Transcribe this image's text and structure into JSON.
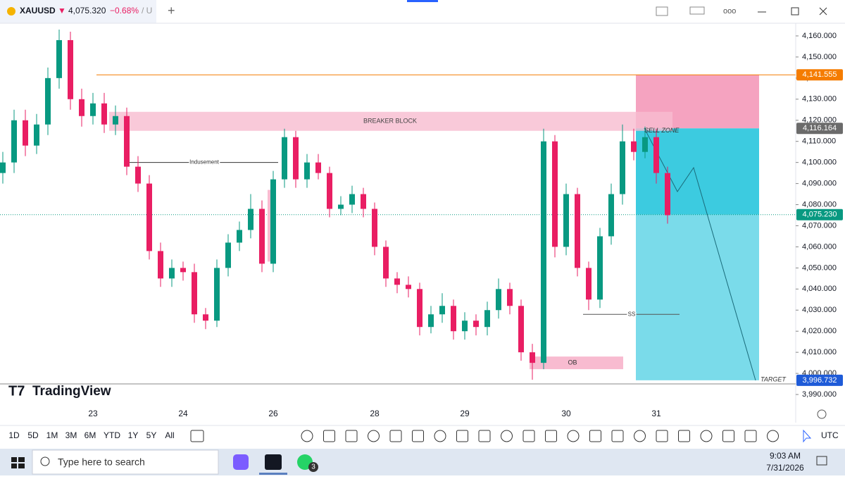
{
  "header": {
    "symbol": "XAUUSD",
    "arrow": "▼",
    "price": "4,075.320",
    "change": "−0.68%",
    "suffix": "/ U"
  },
  "chart_data": {
    "type": "candlestick",
    "categories": [
      null,
      null,
      null,
      null,
      null,
      null,
      null,
      null,
      "23",
      null,
      null,
      null,
      null,
      null,
      null,
      null,
      "24",
      null,
      null,
      null,
      null,
      null,
      null,
      null,
      "26",
      null,
      null,
      null,
      null,
      null,
      null,
      null,
      null,
      "28",
      null,
      null,
      null,
      null,
      null,
      null,
      null,
      "29",
      null,
      null,
      null,
      null,
      null,
      null,
      null,
      null,
      "30",
      null,
      null,
      null,
      null,
      null,
      null,
      null,
      "31",
      null
    ],
    "open": [
      4095,
      4100,
      4120,
      4108,
      4118,
      4140,
      4158,
      4130,
      4122,
      4128,
      4118,
      4122,
      4098,
      4090,
      4058,
      4045,
      4050,
      4048,
      4028,
      4025,
      4050,
      4062,
      4068,
      4078,
      4052,
      4092,
      4112,
      4092,
      4100,
      4095,
      4078,
      4080,
      4085,
      4078,
      4060,
      4045,
      4042,
      4040,
      4022,
      4028,
      4032,
      4020,
      4025,
      4022,
      4030,
      4040,
      4032,
      4010,
      4005,
      4110,
      4060,
      4085,
      4050,
      4035,
      4065,
      4085,
      4110,
      4105,
      4112,
      4095
    ],
    "high": [
      4105,
      4125,
      4125,
      4123,
      4145,
      4163,
      4162,
      4135,
      4133,
      4133,
      4127,
      4126,
      4103,
      4094,
      4062,
      4054,
      4053,
      4052,
      4031,
      4054,
      4066,
      4072,
      4085,
      4082,
      4096,
      4116,
      4115,
      4104,
      4104,
      4098,
      4084,
      4089,
      4088,
      4081,
      4063,
      4048,
      4046,
      4043,
      4032,
      4038,
      4035,
      4029,
      4028,
      4034,
      4045,
      4043,
      4035,
      4014,
      4116,
      4113,
      4090,
      4088,
      4053,
      4069,
      4090,
      4118,
      4116,
      4117,
      4116,
      4098
    ],
    "low": [
      4090,
      4095,
      4103,
      4104,
      4113,
      4135,
      4125,
      4117,
      4118,
      4114,
      4113,
      4094,
      4086,
      4054,
      4041,
      4041,
      4044,
      4024,
      4021,
      4022,
      4046,
      4058,
      4064,
      4048,
      4048,
      4088,
      4088,
      4088,
      4092,
      4074,
      4075,
      4076,
      4074,
      4056,
      4041,
      4038,
      4036,
      4018,
      4019,
      4024,
      4016,
      4016,
      4018,
      4018,
      4026,
      4028,
      4006,
      3997,
      4002,
      4055,
      4056,
      4046,
      4030,
      4031,
      4061,
      4080,
      4101,
      4102,
      4090,
      4071
    ],
    "close": [
      4100,
      4120,
      4108,
      4118,
      4140,
      4158,
      4130,
      4122,
      4128,
      4118,
      4122,
      4098,
      4090,
      4058,
      4045,
      4050,
      4048,
      4028,
      4025,
      4050,
      4062,
      4068,
      4078,
      4052,
      4092,
      4112,
      4092,
      4100,
      4095,
      4078,
      4080,
      4085,
      4078,
      4060,
      4045,
      4042,
      4040,
      4022,
      4028,
      4032,
      4020,
      4025,
      4022,
      4030,
      4040,
      4032,
      4010,
      4005,
      4110,
      4060,
      4085,
      4050,
      4035,
      4065,
      4085,
      4110,
      4105,
      4112,
      4095,
      4075
    ],
    "up_color": "#089981",
    "down_color": "#e91e63",
    "ylim": [
      3985,
      4166
    ],
    "yticks": [
      {
        "value": 4160,
        "label": "4,160.000"
      },
      {
        "value": 4150,
        "label": "4,150.000"
      },
      {
        "value": 4140,
        "label": "4,140.000"
      },
      {
        "value": 4130,
        "label": "4,130.000"
      },
      {
        "value": 4120,
        "label": "4,120.000"
      },
      {
        "value": 4110,
        "label": "4,110.000"
      },
      {
        "value": 4100,
        "label": "4,100.000"
      },
      {
        "value": 4090,
        "label": "4,090.000"
      },
      {
        "value": 4080,
        "label": "4,080.000"
      },
      {
        "value": 4070,
        "label": "4,070.000"
      },
      {
        "value": 4060,
        "label": "4,060.000"
      },
      {
        "value": 4050,
        "label": "4,050.000"
      },
      {
        "value": 4040,
        "label": "4,040.000"
      },
      {
        "value": 4030,
        "label": "4,030.000"
      },
      {
        "value": 4020,
        "label": "4,020.000"
      },
      {
        "value": 4010,
        "label": "4,010.000"
      },
      {
        "value": 4000,
        "label": "4,000.000"
      },
      {
        "value": 3990,
        "label": "3,990.000"
      }
    ],
    "price_markers": [
      {
        "value": 4141.555,
        "label": "4,141.555",
        "color": "#f57c00"
      },
      {
        "value": 4116.164,
        "label": "4,116.164",
        "color": "#6b6b6b"
      },
      {
        "value": 4075.23,
        "label": "4,075.230",
        "color": "#089981"
      },
      {
        "value": 3996.732,
        "label": "3,996.732",
        "color": "#1e5bd8"
      }
    ],
    "highlight": [
      4053,
      4087
    ],
    "annotations": [
      {
        "text": "BREAKER BLOCK",
        "y": [
          4115,
          4124
        ]
      },
      {
        "text": "Indusement",
        "y": 4100
      },
      {
        "text": "SELL ZONE",
        "y": 4115
      },
      {
        "text": "SS",
        "y": 4028
      },
      {
        "text": "OB",
        "y": [
          4002,
          4008
        ]
      },
      {
        "text": "TARGET",
        "y": 3997
      }
    ]
  },
  "logo": "TradingView",
  "timeframes": [
    "1D",
    "5D",
    "1M",
    "3M",
    "6M",
    "YTD",
    "1Y",
    "5Y",
    "All"
  ],
  "timezone": "UTC",
  "taskbar": {
    "search": "Type here to search",
    "badge": "3",
    "time": "9:03 AM",
    "date": "7/31/2026"
  }
}
